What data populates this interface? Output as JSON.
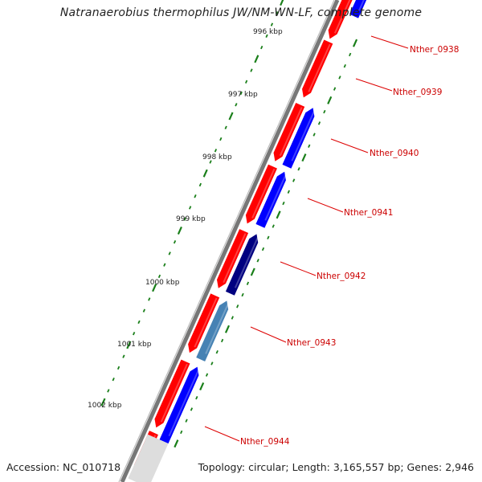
{
  "title": "Natranaerobius thermophilus JW/NM-WN-LF, complete genome",
  "footer": {
    "accession": "Accession: NC_010718",
    "summary": "Topology: circular; Length: 3,165,557 bp; Genes: 2,946"
  },
  "colors": {
    "forward_strand": "#ff0000",
    "reverse_strand": "#0000ff",
    "reverse_strand_dark": "#000080",
    "reverse_strand_light": "#4682b4",
    "tick": "#1a7f1a",
    "label": "#cc0000",
    "backbone": "#888888"
  },
  "scale_labels": [
    "996 kbp",
    "997 kbp",
    "998 kbp",
    "999 kbp",
    "1000 kbp",
    "1001 kbp",
    "1002 kbp"
  ],
  "gene_labels": [
    "Nther_0938",
    "Nther_0939",
    "Nther_0940",
    "Nther_0941",
    "Nther_0942",
    "Nther_0943",
    "Nther_0944"
  ]
}
